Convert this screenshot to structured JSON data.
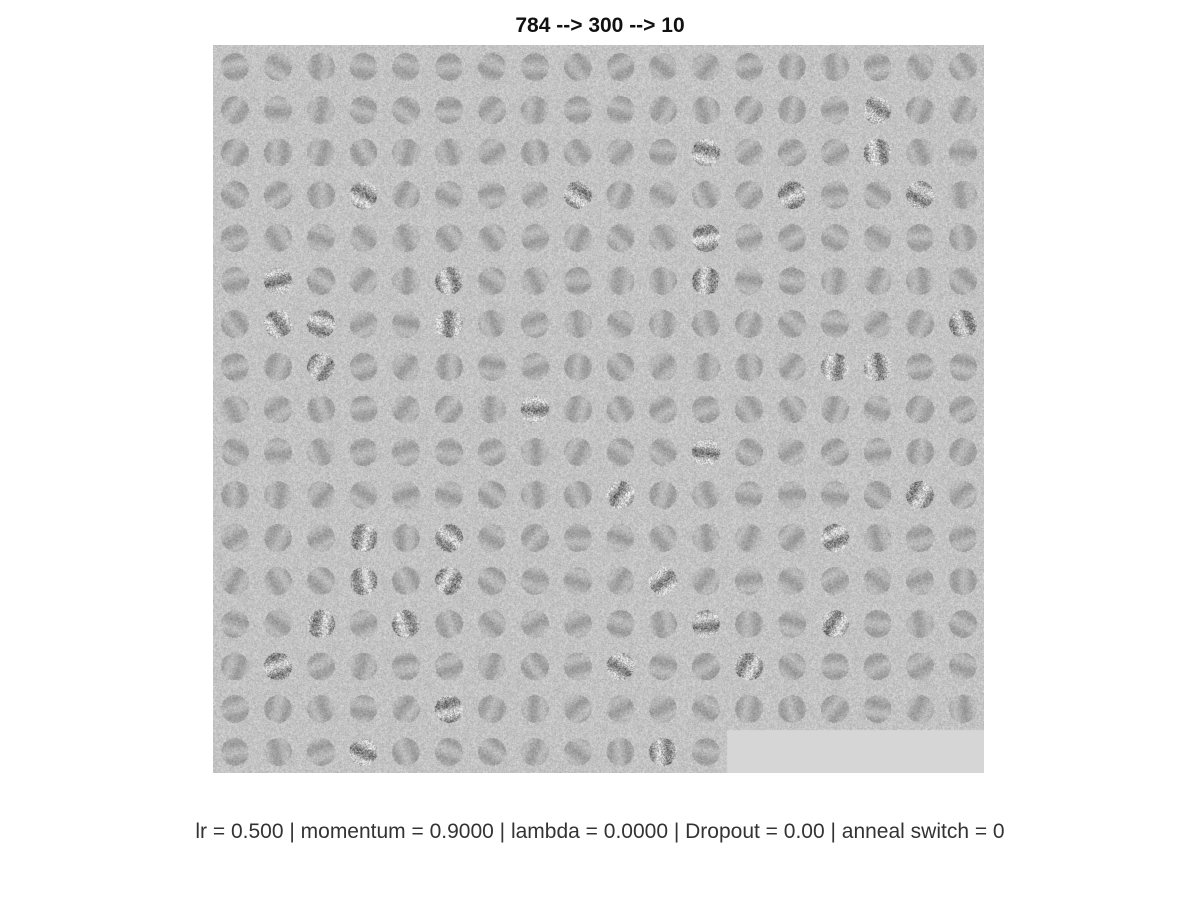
{
  "figure": {
    "title": "784 --> 300 --> 10",
    "caption": "lr = 0.500 | momentum = 0.9000 | lambda = 0.0000 | Dropout = 0.00 | anneal switch = 0"
  },
  "weights_grid": {
    "columns": 18,
    "rows": 17,
    "tiles_shown": 300,
    "tile_content": "grayscale hidden-unit weight filters (28x28) rendered as noisy gray patches",
    "empty_fill_color": "#d6d6d6"
  }
}
